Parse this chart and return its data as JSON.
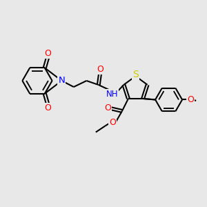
{
  "bg_color": "#e8e8e8",
  "bond_color": "#000000",
  "colors": {
    "O": "#ff0000",
    "N": "#0000ff",
    "S": "#cccc00",
    "C": "#000000"
  },
  "lw": 1.5,
  "figsize": [
    3.0,
    3.0
  ],
  "dpi": 100
}
